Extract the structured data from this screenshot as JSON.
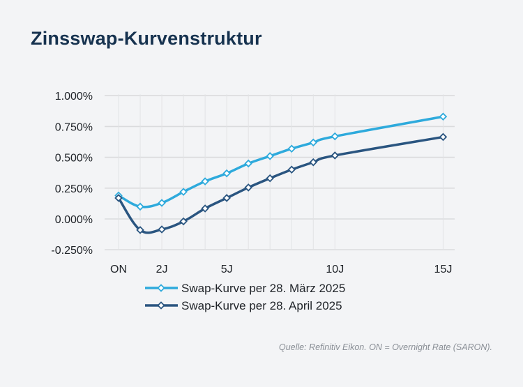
{
  "title": "Zinsswap-Kurvenstruktur",
  "source": "Quelle: Refinitiv Eikon. ON = Overnight Rate (SARON).",
  "chart_data": {
    "type": "line",
    "title": "Zinsswap-Kurvenstruktur",
    "xlabel": "",
    "ylabel": "",
    "x": [
      0,
      1,
      2,
      3,
      4,
      5,
      6,
      7,
      8,
      9,
      10,
      15
    ],
    "x_tick_values": [
      0,
      2,
      5,
      10,
      15
    ],
    "x_tick_labels": [
      "ON",
      "2J",
      "5J",
      "10J",
      "15J"
    ],
    "y_ticks": [
      -0.25,
      0,
      0.25,
      0.5,
      0.75,
      1.0
    ],
    "y_tick_labels": [
      "-0.250%",
      "0.000%",
      "0.250%",
      "0.500%",
      "0.750%",
      "1.000%"
    ],
    "ylim": [
      -0.25,
      1.0
    ],
    "xlim": [
      0,
      15
    ],
    "grid": true,
    "legend_position": "bottom",
    "series": [
      {
        "name": "Swap-Kurve per 28. März 2025",
        "color": "#2eaadc",
        "values": [
          0.19,
          0.1,
          0.13,
          0.22,
          0.305,
          0.37,
          0.45,
          0.51,
          0.57,
          0.62,
          0.67,
          0.83
        ]
      },
      {
        "name": "Swap-Kurve per 28. April 2025",
        "color": "#2a5580",
        "values": [
          0.17,
          -0.09,
          -0.085,
          -0.02,
          0.085,
          0.17,
          0.255,
          0.33,
          0.4,
          0.46,
          0.515,
          0.665
        ]
      }
    ]
  }
}
